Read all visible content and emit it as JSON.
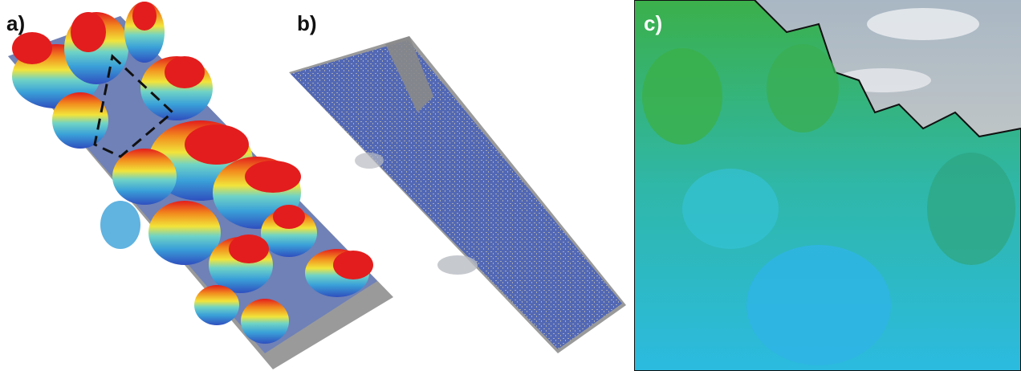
{
  "panels": [
    {
      "label": "a)",
      "description_color_scale": [
        "#2f4fbf",
        "#3aa0d8",
        "#6fd3c6",
        "#f2e43a",
        "#f28c1e",
        "#e31d1d"
      ]
    },
    {
      "label": "b)"
    },
    {
      "label": "c)"
    }
  ],
  "colors": {
    "ground": "#8a8a8a",
    "points_blue": "#3f5cb8",
    "canopy_green": "#2fa84f",
    "canopy_cyan": "#2fc1d8",
    "sky": "#c9cfd6",
    "outline": "#111111"
  }
}
